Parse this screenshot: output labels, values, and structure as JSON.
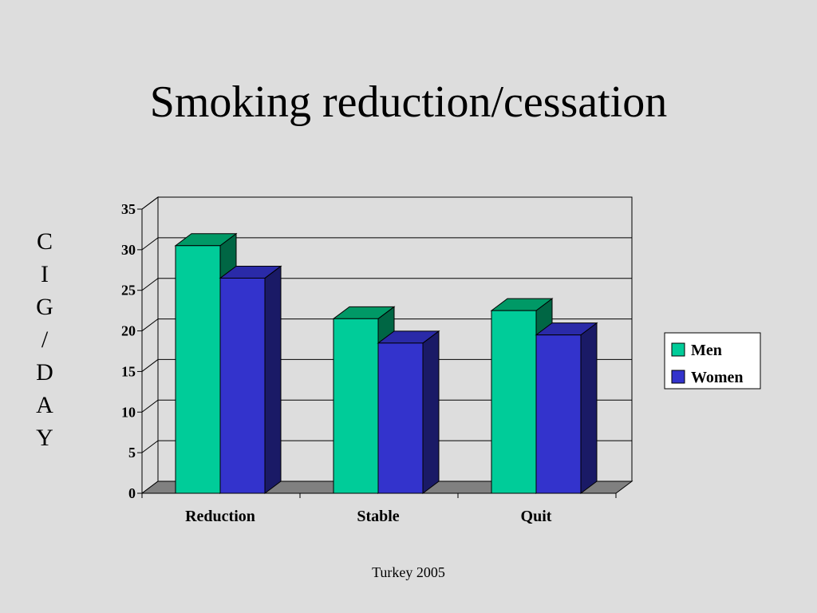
{
  "slide": {
    "title": "Smoking reduction/cessation",
    "ylabel_letters": [
      "C",
      "I",
      "G",
      "/",
      "D",
      "A",
      "Y"
    ],
    "footer": "Turkey 2005"
  },
  "chart_data": {
    "type": "bar",
    "categories": [
      "Reduction",
      "Stable",
      "Quit"
    ],
    "series": [
      {
        "name": "Men",
        "values": [
          30.5,
          21.5,
          22.5
        ],
        "color": "#00cc99",
        "top_color": "#009966",
        "side_color": "#006644"
      },
      {
        "name": "Women",
        "values": [
          26.5,
          18.5,
          19.5
        ],
        "color": "#3333cc",
        "top_color": "#2a2aa8",
        "side_color": "#1a1a66"
      }
    ],
    "ylim": [
      0,
      35
    ],
    "yticks": [
      0,
      5,
      10,
      15,
      20,
      25,
      30,
      35
    ],
    "ylabel": "CIG/DAY",
    "grid": true,
    "legend_position": "right"
  }
}
